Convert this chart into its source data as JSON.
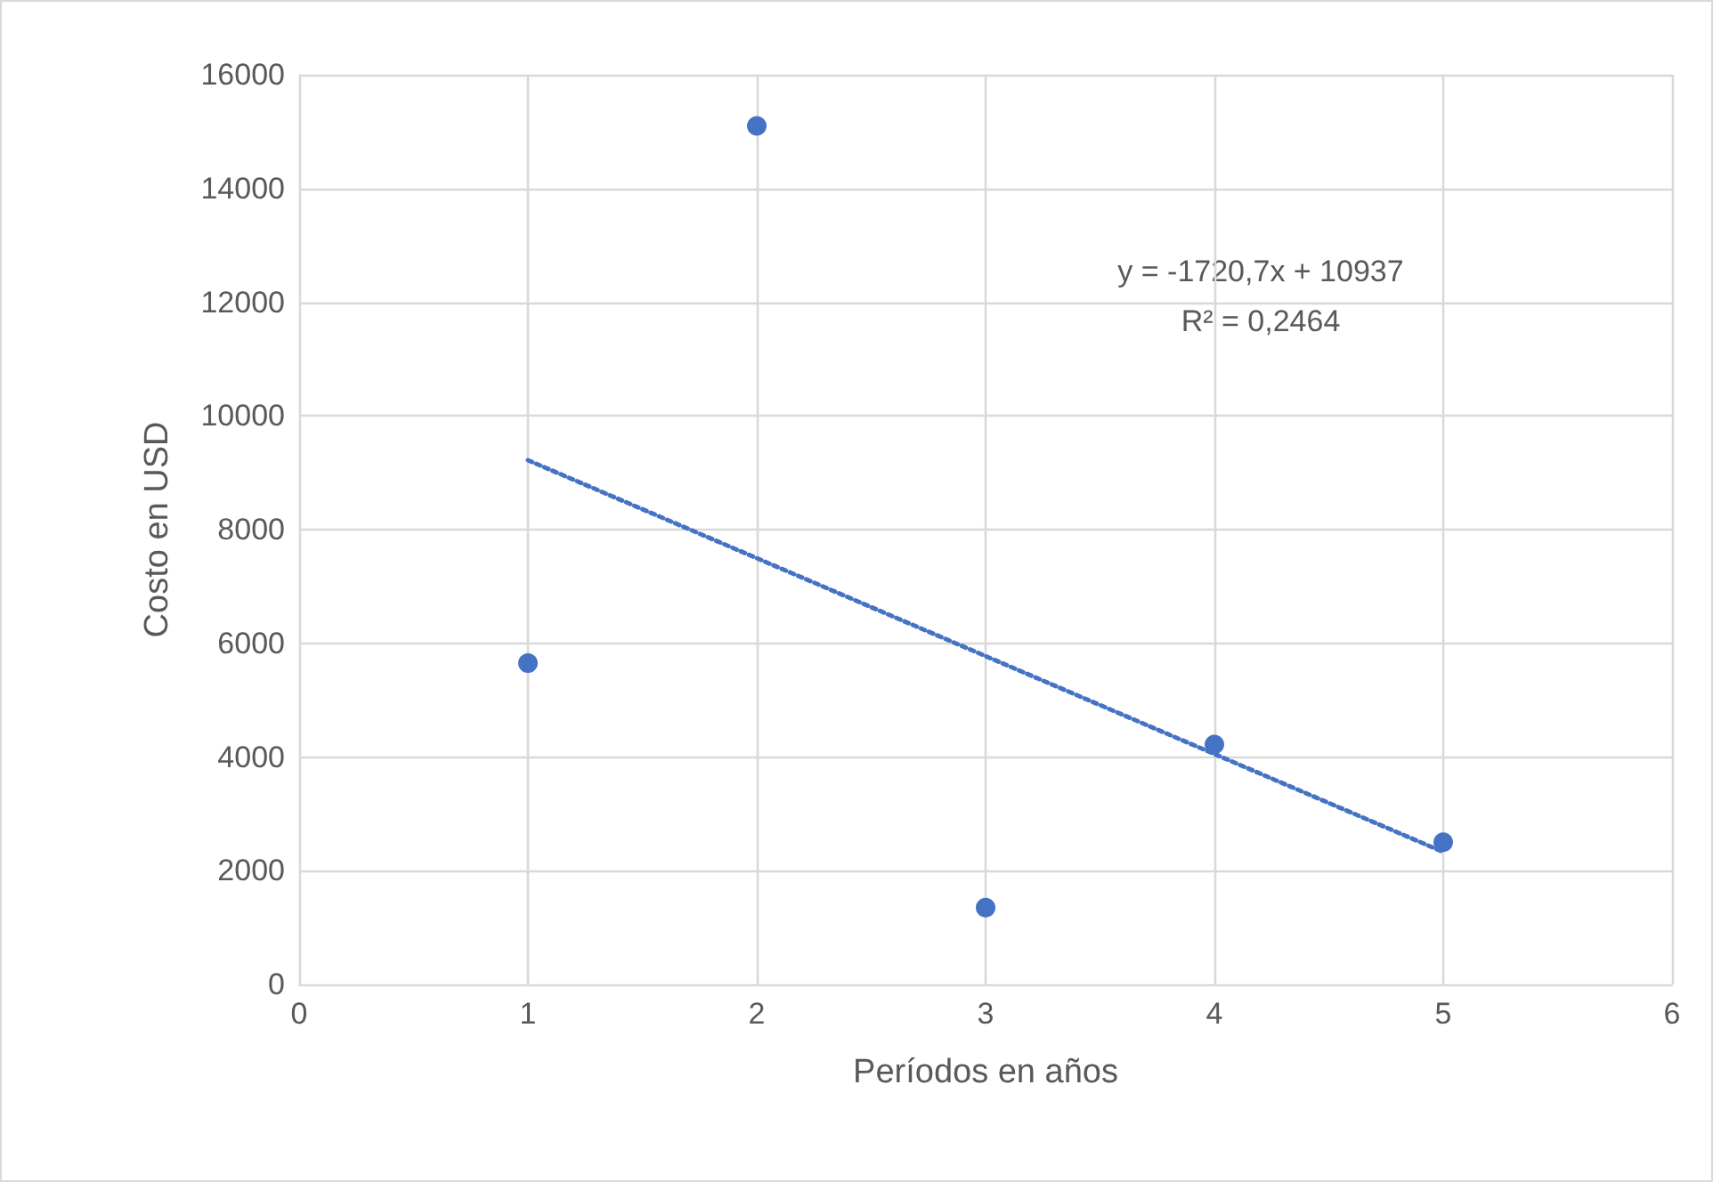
{
  "chart_data": {
    "type": "scatter",
    "xlabel": "Períodos en años",
    "ylabel": "Costo en USD",
    "xlim": [
      0,
      6
    ],
    "xticks": [
      0,
      1,
      2,
      3,
      4,
      5,
      6
    ],
    "ylim": [
      0,
      16000
    ],
    "yticks": [
      0,
      2000,
      4000,
      6000,
      8000,
      10000,
      12000,
      14000,
      16000
    ],
    "grid": true,
    "marker": "circle",
    "series": [
      {
        "color": "#4472c4",
        "x": [
          1,
          2,
          3,
          4,
          5
        ],
        "values": [
          5650,
          15100,
          1350,
          4220,
          2500
        ]
      },
      {
        "type": "line",
        "color": "#4472c4",
        "x": [
          1,
          5
        ],
        "values": [
          9220,
          2330
        ],
        "line_style": "dotted",
        "marker": "none"
      }
    ],
    "annotations": [
      "y = -1720,7x + 10937",
      "R² = 0,2464"
    ]
  }
}
